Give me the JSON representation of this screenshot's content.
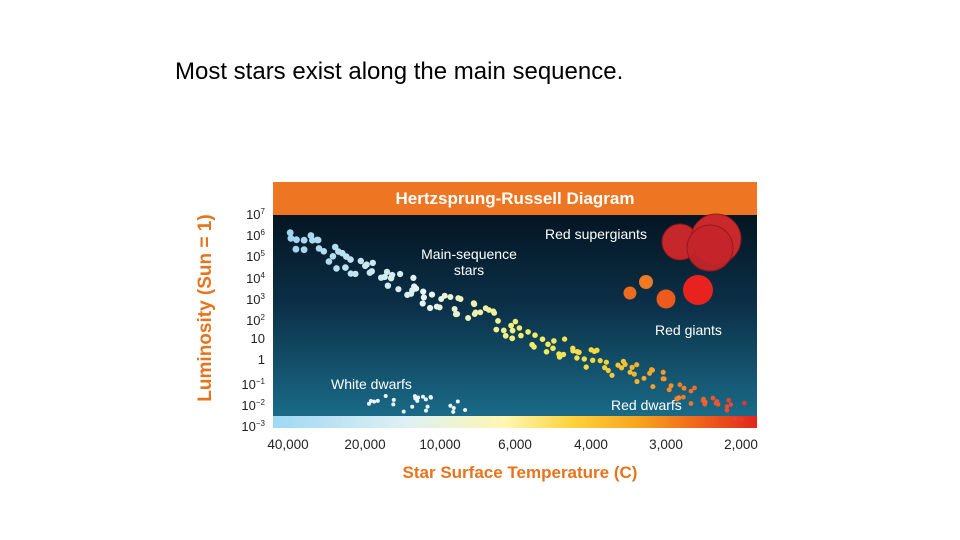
{
  "slide": {
    "title": "Most stars exist along the main sequence."
  },
  "diagram": {
    "title": "Hertzsprung-Russell Diagram",
    "y_axis_label": "Luminosity (Sun = 1)",
    "x_axis_label": "Star Surface Temperature (C)",
    "y_ticks": [
      {
        "base": "10",
        "exp": "7"
      },
      {
        "base": "10",
        "exp": "6"
      },
      {
        "base": "10",
        "exp": "5"
      },
      {
        "base": "10",
        "exp": "4"
      },
      {
        "base": "10",
        "exp": "3"
      },
      {
        "base": "10",
        "exp": "2"
      },
      {
        "base": "10",
        "exp": ""
      },
      {
        "base": "1",
        "exp": ""
      },
      {
        "base": "10",
        "exp": "−1"
      },
      {
        "base": "10",
        "exp": "−2"
      },
      {
        "base": "10",
        "exp": "−3"
      }
    ],
    "x_ticks": [
      "40,000",
      "20,000",
      "10,000",
      "6,000",
      "4,000",
      "3,000",
      "2,000"
    ],
    "annotations": {
      "main_sequence_line1": "Main-sequence",
      "main_sequence_line2": "stars",
      "red_supergiants": "Red supergiants",
      "red_giants": "Red giants",
      "white_dwarfs": "White dwarfs",
      "red_dwarfs": "Red dwarfs"
    },
    "colors": {
      "accent_orange": "#ee7623",
      "supergiant_red": "#c8262a",
      "giant_red": "#e8231f",
      "giant_orange": "#ee6a1e",
      "main_sequence_blue": "#9fd4f0",
      "main_sequence_yellow": "#f4e22c"
    }
  }
}
